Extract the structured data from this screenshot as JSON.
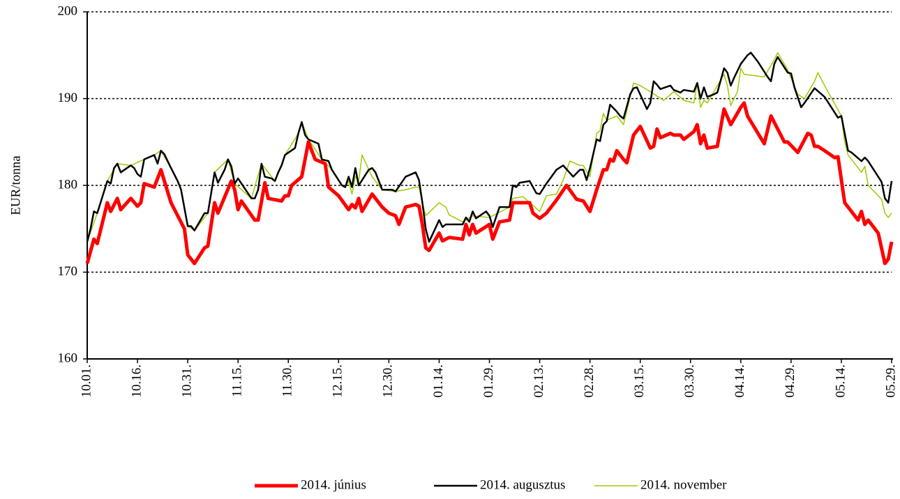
{
  "chart_data": {
    "type": "line",
    "y_label": "EUR/tonna",
    "xlim": [
      0,
      240
    ],
    "xticks": [
      {
        "value": 0,
        "label": "10.01."
      },
      {
        "value": 15,
        "label": "10.16."
      },
      {
        "value": 30,
        "label": "10.31."
      },
      {
        "value": 45,
        "label": "11.15."
      },
      {
        "value": 60,
        "label": "11.30."
      },
      {
        "value": 75,
        "label": "12.15."
      },
      {
        "value": 90,
        "label": "12.30."
      },
      {
        "value": 105,
        "label": "01.14."
      },
      {
        "value": 120,
        "label": "01.29."
      },
      {
        "value": 135,
        "label": "02.13."
      },
      {
        "value": 150,
        "label": "02.28."
      },
      {
        "value": 165,
        "label": "03.15."
      },
      {
        "value": 180,
        "label": "03.30."
      },
      {
        "value": 195,
        "label": "04.14."
      },
      {
        "value": 210,
        "label": "04.29."
      },
      {
        "value": 225,
        "label": "05.14."
      },
      {
        "value": 240,
        "label": "05.29."
      }
    ],
    "ylim": [
      160,
      200
    ],
    "yticks": [
      160,
      170,
      180,
      190,
      200
    ],
    "grid": true,
    "legend": "bottom",
    "series": [
      {
        "name": "2014. június",
        "color": "#ff0000",
        "x": [
          0,
          2,
          3,
          6,
          7,
          9,
          10,
          13,
          15,
          16,
          17,
          20,
          22,
          25,
          29,
          30,
          32,
          35,
          36,
          38,
          39,
          43,
          44,
          45,
          46,
          50,
          51,
          53,
          54,
          58,
          59,
          60,
          61,
          64,
          66,
          68,
          71,
          72,
          75,
          78,
          79,
          80,
          81,
          82,
          85,
          88,
          90,
          92,
          93,
          95,
          98,
          99,
          100,
          101,
          102,
          105,
          106,
          108,
          112,
          113,
          114,
          115,
          116,
          120,
          121,
          123,
          126,
          127,
          132,
          133,
          134,
          135,
          137,
          140,
          143,
          146,
          148,
          150,
          152,
          154,
          155,
          156,
          157,
          158,
          160,
          161,
          163,
          165,
          168,
          169,
          170,
          171,
          174,
          175,
          177,
          178,
          181,
          182,
          183,
          184,
          185,
          188,
          190,
          192,
          195,
          196,
          197,
          202,
          204,
          208,
          209,
          212,
          215,
          216,
          217,
          218,
          220,
          223,
          224,
          226,
          230,
          231,
          232,
          233,
          236,
          238,
          239,
          240
        ],
        "values": [
          171,
          173.8,
          173.3,
          178,
          177,
          178.5,
          177.2,
          178.5,
          177.6,
          178,
          180.2,
          179.8,
          181.8,
          178,
          175,
          172,
          171,
          172.8,
          173,
          178,
          176.8,
          180.5,
          179.5,
          177.2,
          178.2,
          176,
          176,
          180.3,
          178.5,
          178.2,
          178.8,
          178.8,
          180,
          181,
          185,
          183,
          182.5,
          179.8,
          178.8,
          177.2,
          177.8,
          177.4,
          178.5,
          177,
          179,
          177.5,
          176.8,
          176.5,
          175.5,
          177.5,
          177.8,
          177.6,
          175.5,
          172.8,
          172.5,
          174.5,
          173.6,
          174,
          173.8,
          175.5,
          174.3,
          175.5,
          174.5,
          175.5,
          173.8,
          175.8,
          176,
          178,
          178,
          176.8,
          176.5,
          176.2,
          176.8,
          178.3,
          180,
          178.4,
          178.2,
          177,
          179.5,
          181.8,
          181.8,
          183,
          182.8,
          184,
          183,
          182.6,
          185.8,
          186.8,
          184.3,
          184.5,
          186.5,
          185.5,
          186,
          185.8,
          185.8,
          185.3,
          186.2,
          187,
          184.8,
          185.8,
          184.3,
          184.5,
          188.8,
          187,
          189,
          189.5,
          188,
          184.8,
          188,
          185,
          185,
          183.8,
          186,
          185.8,
          184.5,
          184.5,
          184,
          183.2,
          183.3,
          178,
          176,
          177,
          175.5,
          176,
          174.5,
          171,
          171.5,
          173.5
        ]
      },
      {
        "name": "2014. augusztus",
        "color": "#000000",
        "x": [
          0,
          1,
          2,
          3,
          6,
          7,
          8,
          9,
          10,
          13,
          14,
          15,
          16,
          17,
          20,
          21,
          22,
          23,
          25,
          27,
          28,
          30,
          31,
          32,
          35,
          36,
          38,
          39,
          41,
          42,
          43,
          44,
          45,
          49,
          50,
          51,
          52,
          53,
          55,
          56,
          57,
          58,
          59,
          62,
          63,
          64,
          65,
          66,
          69,
          70,
          72,
          73,
          76,
          77,
          78,
          79,
          80,
          81,
          84,
          85,
          86,
          88,
          91,
          92,
          95,
          98,
          99,
          100,
          101,
          102,
          105,
          106,
          107,
          112,
          113,
          114,
          115,
          116,
          119,
          120,
          121,
          123,
          126,
          127,
          128,
          129,
          132,
          134,
          135,
          137,
          140,
          142,
          145,
          147,
          148,
          149,
          150,
          152,
          153,
          154,
          155,
          156,
          158,
          159,
          160,
          162,
          163,
          164,
          167,
          168,
          169,
          170,
          171,
          174,
          175,
          177,
          178,
          181,
          182,
          183,
          184,
          185,
          187,
          188,
          190,
          191,
          192,
          193,
          195,
          197,
          198,
          200,
          203,
          204,
          205,
          206,
          209,
          210,
          211,
          213,
          214,
          217,
          220,
          222,
          224,
          225,
          226,
          227,
          228,
          231,
          232,
          233,
          237,
          238,
          239,
          240
        ],
        "values": [
          173.5,
          175,
          177,
          176.8,
          180.5,
          180.2,
          182,
          182.5,
          181.5,
          182.3,
          182,
          181.3,
          181,
          183,
          183.5,
          182.5,
          184,
          183.6,
          182,
          180.5,
          179.5,
          175.3,
          175.3,
          174.8,
          176.8,
          176.8,
          181.5,
          180.3,
          181.8,
          183,
          182.2,
          180.2,
          180.8,
          178.5,
          178.5,
          179.5,
          182.5,
          181,
          180.8,
          180.5,
          181.5,
          182.3,
          183.5,
          184.3,
          186,
          187.3,
          185.8,
          185.3,
          184.8,
          183,
          182.8,
          181.8,
          180,
          179.8,
          181,
          179.8,
          182,
          180,
          181.8,
          182,
          181.5,
          179.5,
          179.5,
          179.3,
          181,
          181.5,
          180.6,
          178,
          175,
          173.5,
          176,
          175.2,
          175.5,
          175.5,
          176.3,
          175.8,
          177,
          176.2,
          177,
          176.5,
          175.2,
          177.5,
          177.5,
          180,
          179.8,
          180.3,
          180.5,
          179.1,
          179,
          180.2,
          181.8,
          182.3,
          181,
          181.8,
          181.8,
          180.6,
          182,
          185.3,
          185.1,
          187,
          187.4,
          189.3,
          188.5,
          188,
          187.7,
          190.5,
          191.2,
          191.3,
          188.8,
          189.5,
          192,
          191.6,
          191.1,
          191.5,
          191,
          190.7,
          191,
          190.8,
          191.8,
          190,
          191.3,
          190.2,
          190.5,
          190.7,
          193.5,
          193,
          191.5,
          192.4,
          194,
          195,
          195.3,
          194.3,
          192.5,
          192,
          194,
          194.8,
          193,
          192.9,
          191.3,
          189,
          189.5,
          191.2,
          190.2,
          189,
          187.8,
          188,
          186,
          184,
          183.8,
          182.8,
          183.2,
          182.8,
          180.4,
          178.5,
          178,
          180.5
        ]
      },
      {
        "name": "2014. november",
        "color": "#99cc00",
        "x": [
          0,
          3,
          6,
          9,
          13,
          17,
          20,
          22,
          25,
          28,
          30,
          32,
          36,
          38,
          42,
          44,
          49,
          52,
          56,
          59,
          63,
          64,
          66,
          70,
          73,
          76,
          77,
          78,
          79,
          80,
          81,
          82,
          85,
          88,
          92,
          95,
          98,
          99,
          100,
          101,
          105,
          107,
          108,
          112,
          115,
          120,
          126,
          127,
          130,
          135,
          137,
          140,
          142,
          144,
          147,
          148,
          150,
          152,
          153,
          154,
          155,
          158,
          160,
          163,
          165,
          168,
          172,
          175,
          178,
          181,
          182,
          183,
          184,
          185,
          190,
          191,
          192,
          194,
          195,
          196,
          202,
          205,
          206,
          209,
          212,
          214,
          217,
          218,
          220,
          225,
          226,
          227,
          231,
          232,
          233,
          237,
          238,
          239,
          240
        ],
        "values": [
          173.5,
          176.8,
          180.5,
          182.5,
          182.3,
          183,
          183.5,
          184,
          182,
          179.5,
          175.3,
          174.8,
          176.8,
          181.5,
          183,
          180.2,
          178.5,
          182.5,
          180.5,
          183.5,
          186,
          187.3,
          185.3,
          183,
          181.8,
          180,
          179.8,
          180.5,
          179,
          181,
          180.5,
          183.5,
          181,
          179.5,
          179.3,
          179.5,
          179.8,
          179.8,
          178,
          176.5,
          178,
          177.5,
          176.6,
          175.8,
          176.5,
          176.3,
          177.5,
          178.5,
          178.7,
          177,
          178.8,
          179,
          180.6,
          182.8,
          182.3,
          182.3,
          181,
          186,
          186.3,
          188.3,
          187.5,
          188,
          187,
          191.8,
          191.5,
          190.8,
          189.8,
          190.8,
          189.8,
          189.5,
          191.8,
          189,
          189.8,
          189.5,
          192.8,
          191.5,
          189.2,
          190.8,
          193.5,
          192.8,
          192.5,
          194.5,
          195.3,
          193.3,
          190.5,
          190,
          192,
          193,
          191.5,
          188,
          185,
          183.5,
          181.5,
          182.2,
          180,
          178.4,
          176.8,
          176.3,
          176.8
        ]
      }
    ]
  }
}
